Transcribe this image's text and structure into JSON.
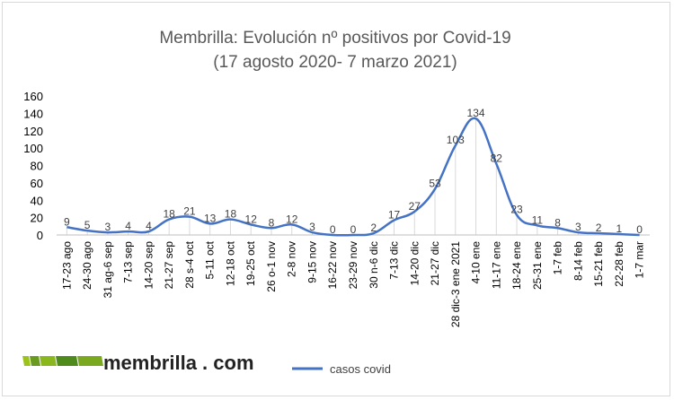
{
  "chart_data": {
    "type": "line",
    "title": "Membrilla: Evolución nº positivos por Covid-19",
    "subtitle": "(17 agosto 2020- 7 marzo 2021)",
    "xlabel": "",
    "ylabel": "",
    "ylim": [
      0,
      160
    ],
    "yticks": [
      0,
      20,
      40,
      60,
      80,
      100,
      120,
      140,
      160
    ],
    "grid": false,
    "legend_position": "bottom",
    "categories": [
      "17-23 ago",
      "24-30 ago",
      "31 ag-6 sep",
      "7-13 sep",
      "14-20 sep",
      "21-27 sep",
      "28 s-4 oct",
      "5-11 oct",
      "12-18 oct",
      "19-25 oct",
      "26 o-1 nov",
      "2-8 nov",
      "9-15 nov",
      "16-22 nov",
      "23-29 nov",
      "30 n-6 dic",
      "7-13 dic",
      "14-20 dic",
      "21-27 dic",
      "28 dic-3 ene 2021",
      "4-10 ene",
      "11-17 ene",
      "18-24 ene",
      "25-31 ene",
      "1-7 feb",
      "8-14 feb",
      "15-21 feb",
      "22-28 feb",
      "1-7 mar"
    ],
    "series": [
      {
        "name": "casos covid",
        "color": "#4472c4",
        "values": [
          9,
          5,
          3,
          4,
          4,
          18,
          21,
          13,
          18,
          12,
          8,
          12,
          3,
          0,
          0,
          2,
          17,
          27,
          53,
          103,
          134,
          82,
          23,
          11,
          8,
          3,
          2,
          1,
          0
        ]
      }
    ]
  },
  "logo": {
    "text": "membrilla . com"
  }
}
